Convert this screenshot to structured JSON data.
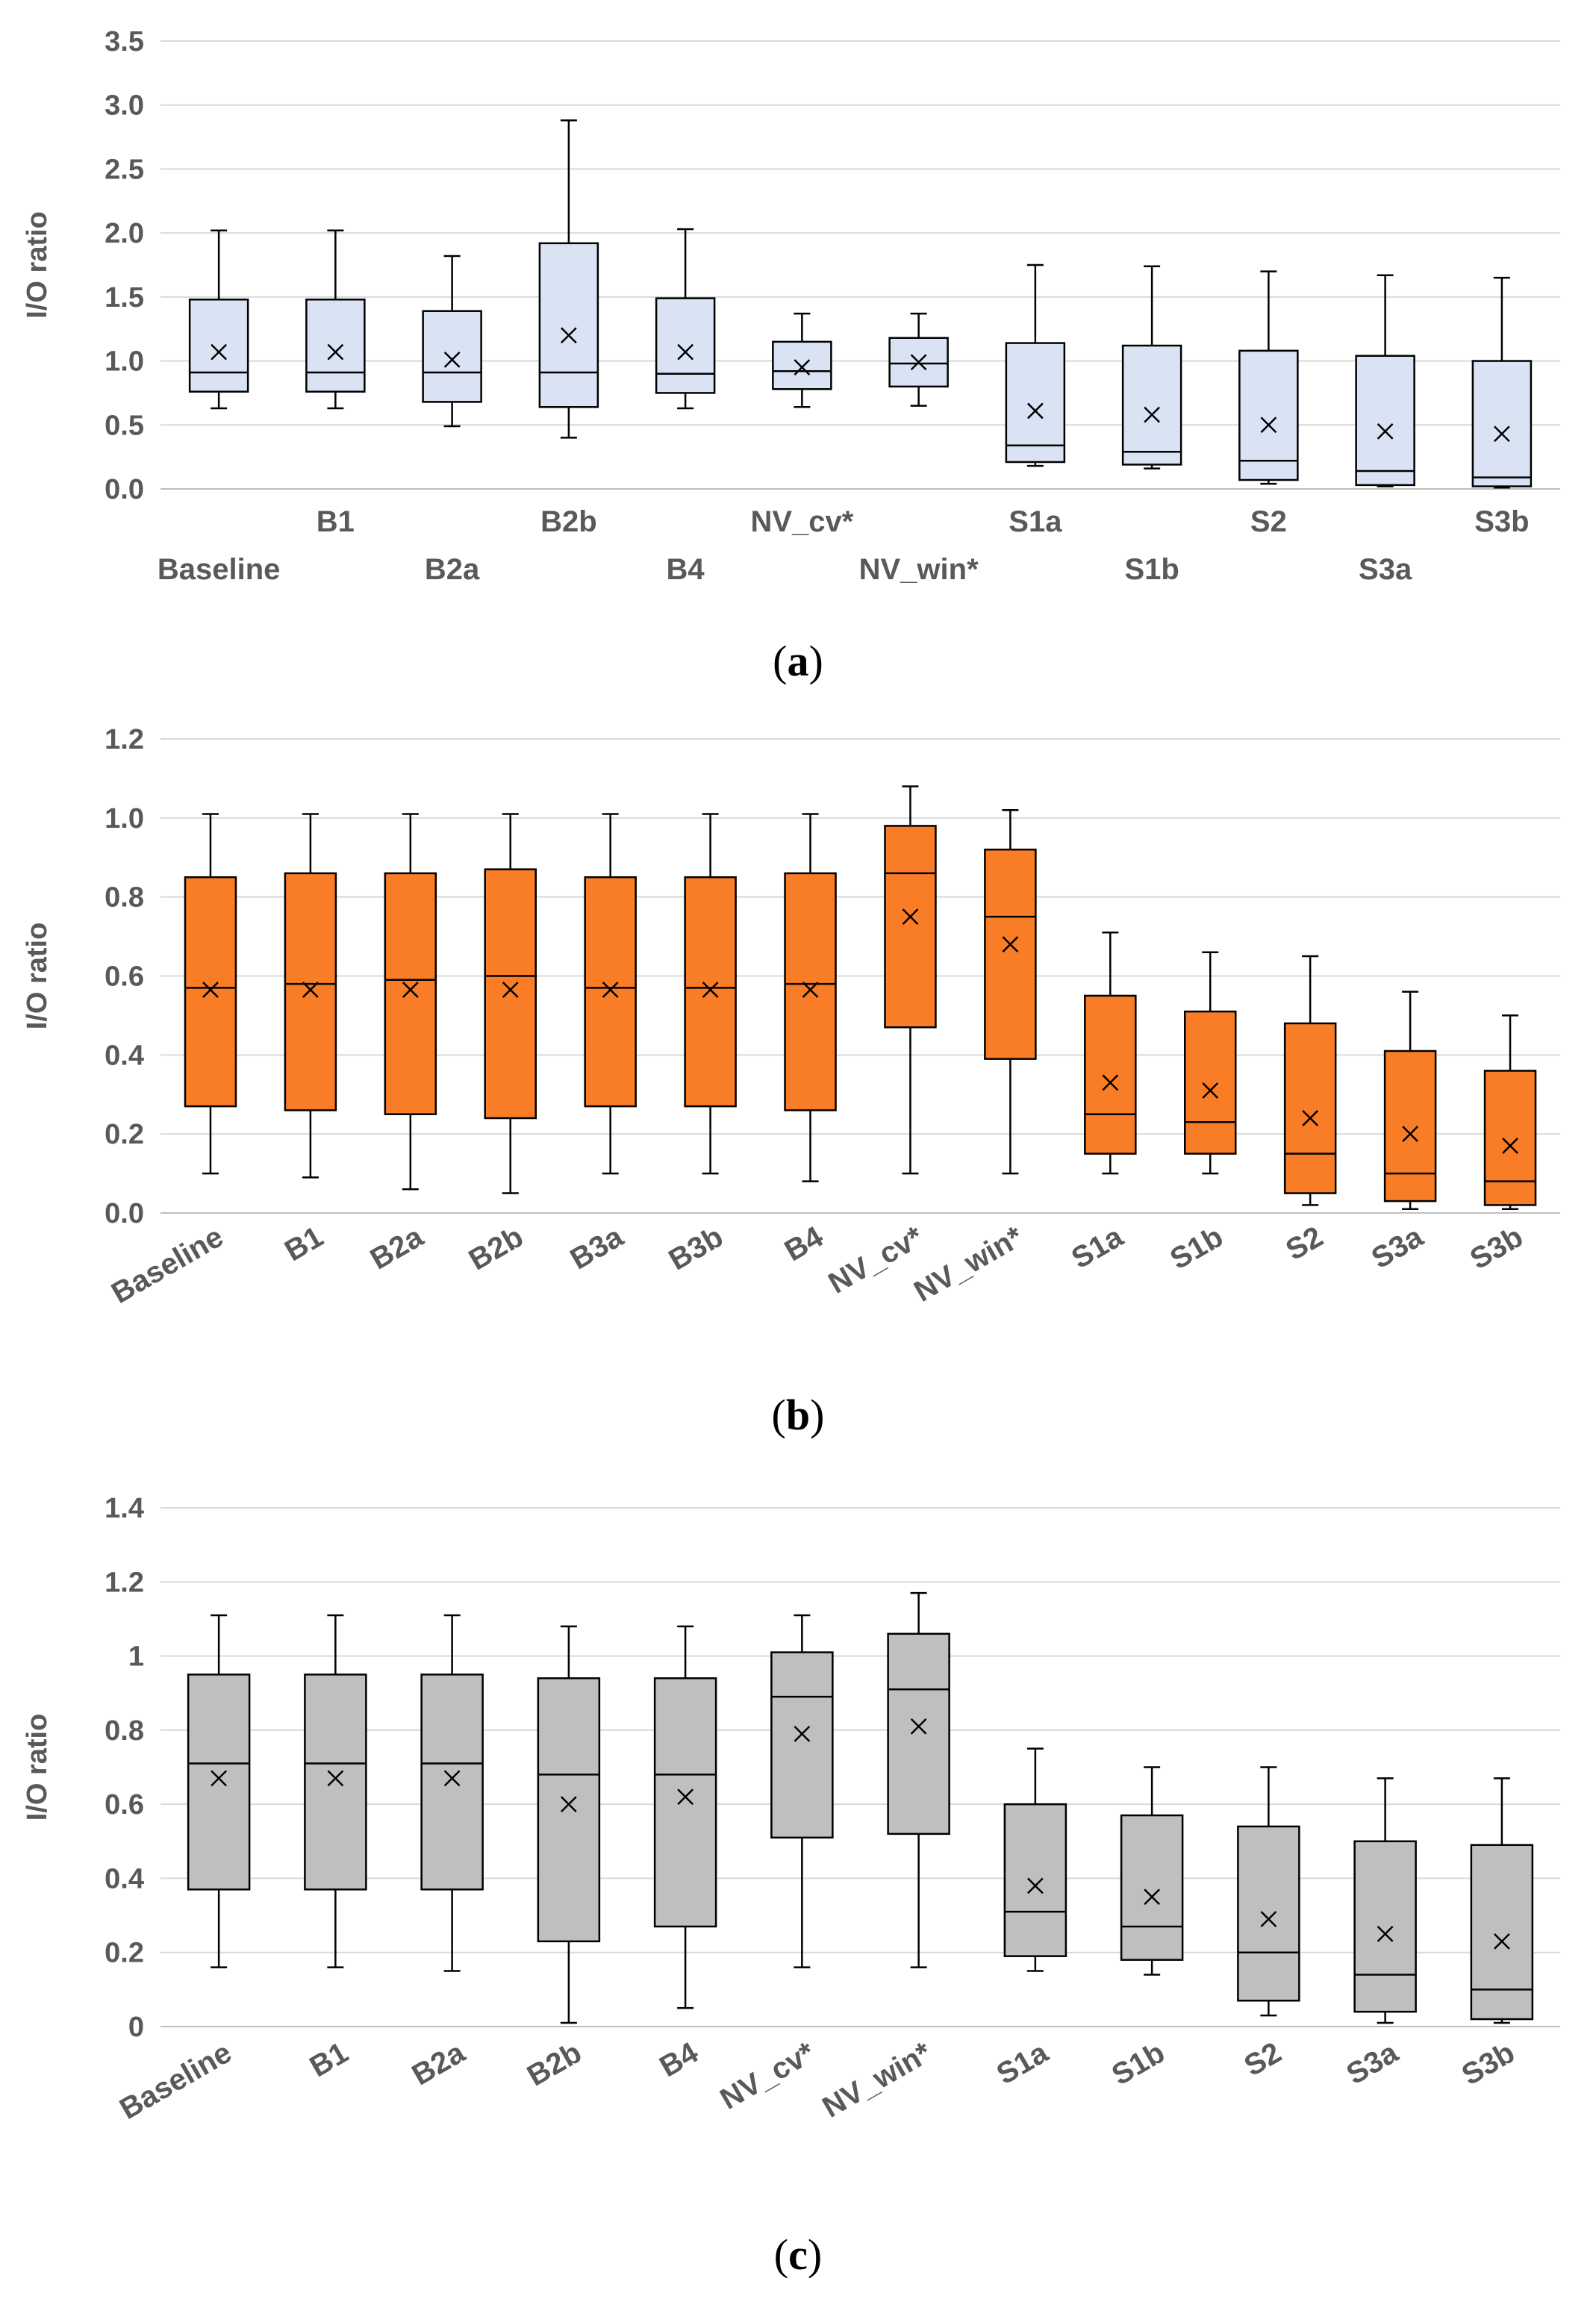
{
  "chart_data": [
    {
      "id": "a",
      "type": "boxplot",
      "panel_label": "a",
      "ylabel": "I/O ratio",
      "ylim": [
        0,
        3.5
      ],
      "yticks": [
        "0.0",
        "0.5",
        "1.0",
        "1.5",
        "2.0",
        "2.5",
        "3.0",
        "3.5"
      ],
      "ytick_values": [
        0,
        0.5,
        1.0,
        1.5,
        2.0,
        2.5,
        3.0,
        3.5
      ],
      "grid": true,
      "label_style": "staggered",
      "colors": {
        "box": "#dae3f3",
        "edge": "#000000"
      },
      "categories": [
        "Baseline",
        "B1",
        "B2a",
        "B2b",
        "B4",
        "NV_cv*",
        "NV_win*",
        "S1a",
        "S1b",
        "S2",
        "S3a",
        "S3b"
      ],
      "boxes": [
        {
          "min": 0.63,
          "q1": 0.76,
          "median": 0.91,
          "q3": 1.48,
          "max": 2.02,
          "mean": 1.07
        },
        {
          "min": 0.63,
          "q1": 0.76,
          "median": 0.91,
          "q3": 1.48,
          "max": 2.02,
          "mean": 1.07
        },
        {
          "min": 0.49,
          "q1": 0.68,
          "median": 0.91,
          "q3": 1.39,
          "max": 1.82,
          "mean": 1.01
        },
        {
          "min": 0.4,
          "q1": 0.64,
          "median": 0.91,
          "q3": 1.92,
          "max": 2.88,
          "mean": 1.2
        },
        {
          "min": 0.63,
          "q1": 0.75,
          "median": 0.9,
          "q3": 1.49,
          "max": 2.03,
          "mean": 1.07
        },
        {
          "min": 0.64,
          "q1": 0.78,
          "median": 0.92,
          "q3": 1.15,
          "max": 1.37,
          "mean": 0.95
        },
        {
          "min": 0.65,
          "q1": 0.8,
          "median": 0.98,
          "q3": 1.18,
          "max": 1.37,
          "mean": 0.99
        },
        {
          "min": 0.18,
          "q1": 0.21,
          "median": 0.34,
          "q3": 1.14,
          "max": 1.75,
          "mean": 0.61
        },
        {
          "min": 0.16,
          "q1": 0.19,
          "median": 0.29,
          "q3": 1.12,
          "max": 1.74,
          "mean": 0.58
        },
        {
          "min": 0.04,
          "q1": 0.07,
          "median": 0.22,
          "q3": 1.08,
          "max": 1.7,
          "mean": 0.5
        },
        {
          "min": 0.02,
          "q1": 0.03,
          "median": 0.14,
          "q3": 1.04,
          "max": 1.67,
          "mean": 0.45
        },
        {
          "min": 0.01,
          "q1": 0.02,
          "median": 0.09,
          "q3": 1.0,
          "max": 1.65,
          "mean": 0.43
        }
      ]
    },
    {
      "id": "b",
      "type": "boxplot",
      "panel_label": "b",
      "ylabel": "I/O ratio",
      "ylim": [
        0,
        1.2
      ],
      "yticks": [
        "0.0",
        "0.2",
        "0.4",
        "0.6",
        "0.8",
        "1.0",
        "1.2"
      ],
      "ytick_values": [
        0,
        0.2,
        0.4,
        0.6,
        0.8,
        1.0,
        1.2
      ],
      "grid": true,
      "label_style": "rotated",
      "colors": {
        "box": "#f97c27",
        "edge": "#000000"
      },
      "categories": [
        "Baseline",
        "B1",
        "B2a",
        "B2b",
        "B3a",
        "B3b",
        "B4",
        "NV_cv*",
        "NV_win*",
        "S1a",
        "S1b",
        "S2",
        "S3a",
        "S3b"
      ],
      "boxes": [
        {
          "min": 0.1,
          "q1": 0.27,
          "median": 0.57,
          "q3": 0.85,
          "max": 1.01,
          "mean": 0.565
        },
        {
          "min": 0.09,
          "q1": 0.26,
          "median": 0.58,
          "q3": 0.86,
          "max": 1.01,
          "mean": 0.565
        },
        {
          "min": 0.06,
          "q1": 0.25,
          "median": 0.59,
          "q3": 0.86,
          "max": 1.01,
          "mean": 0.565
        },
        {
          "min": 0.05,
          "q1": 0.24,
          "median": 0.6,
          "q3": 0.87,
          "max": 1.01,
          "mean": 0.565
        },
        {
          "min": 0.1,
          "q1": 0.27,
          "median": 0.57,
          "q3": 0.85,
          "max": 1.01,
          "mean": 0.565
        },
        {
          "min": 0.1,
          "q1": 0.27,
          "median": 0.57,
          "q3": 0.85,
          "max": 1.01,
          "mean": 0.565
        },
        {
          "min": 0.08,
          "q1": 0.26,
          "median": 0.58,
          "q3": 0.86,
          "max": 1.01,
          "mean": 0.565
        },
        {
          "min": 0.1,
          "q1": 0.47,
          "median": 0.86,
          "q3": 0.98,
          "max": 1.08,
          "mean": 0.75
        },
        {
          "min": 0.1,
          "q1": 0.39,
          "median": 0.75,
          "q3": 0.92,
          "max": 1.02,
          "mean": 0.68
        },
        {
          "min": 0.1,
          "q1": 0.15,
          "median": 0.25,
          "q3": 0.55,
          "max": 0.71,
          "mean": 0.33
        },
        {
          "min": 0.1,
          "q1": 0.15,
          "median": 0.23,
          "q3": 0.51,
          "max": 0.66,
          "mean": 0.31
        },
        {
          "min": 0.02,
          "q1": 0.05,
          "median": 0.15,
          "q3": 0.48,
          "max": 0.65,
          "mean": 0.24
        },
        {
          "min": 0.01,
          "q1": 0.03,
          "median": 0.1,
          "q3": 0.41,
          "max": 0.56,
          "mean": 0.2
        },
        {
          "min": 0.01,
          "q1": 0.02,
          "median": 0.08,
          "q3": 0.36,
          "max": 0.5,
          "mean": 0.17
        }
      ]
    },
    {
      "id": "c",
      "type": "boxplot",
      "panel_label": "c",
      "ylabel": "I/O ratio",
      "ylim": [
        0,
        1.4
      ],
      "yticks": [
        "0",
        "0.2",
        "0.4",
        "0.6",
        "0.8",
        "1",
        "1.2",
        "1.4"
      ],
      "ytick_values": [
        0,
        0.2,
        0.4,
        0.6,
        0.8,
        1.0,
        1.2,
        1.4
      ],
      "grid": true,
      "label_style": "rotated",
      "colors": {
        "box": "#bfbfbf",
        "edge": "#000000"
      },
      "categories": [
        "Baseline",
        "B1",
        "B2a",
        "B2b",
        "B4",
        "NV_cv*",
        "NV_win*",
        "S1a",
        "S1b",
        "S2",
        "S3a",
        "S3b"
      ],
      "boxes": [
        {
          "min": 0.16,
          "q1": 0.37,
          "median": 0.71,
          "q3": 0.95,
          "max": 1.11,
          "mean": 0.67
        },
        {
          "min": 0.16,
          "q1": 0.37,
          "median": 0.71,
          "q3": 0.95,
          "max": 1.11,
          "mean": 0.67
        },
        {
          "min": 0.15,
          "q1": 0.37,
          "median": 0.71,
          "q3": 0.95,
          "max": 1.11,
          "mean": 0.67
        },
        {
          "min": 0.01,
          "q1": 0.23,
          "median": 0.68,
          "q3": 0.94,
          "max": 1.08,
          "mean": 0.6
        },
        {
          "min": 0.05,
          "q1": 0.27,
          "median": 0.68,
          "q3": 0.94,
          "max": 1.08,
          "mean": 0.62
        },
        {
          "min": 0.16,
          "q1": 0.51,
          "median": 0.89,
          "q3": 1.01,
          "max": 1.11,
          "mean": 0.79
        },
        {
          "min": 0.16,
          "q1": 0.52,
          "median": 0.91,
          "q3": 1.06,
          "max": 1.17,
          "mean": 0.81
        },
        {
          "min": 0.15,
          "q1": 0.19,
          "median": 0.31,
          "q3": 0.6,
          "max": 0.75,
          "mean": 0.38
        },
        {
          "min": 0.14,
          "q1": 0.18,
          "median": 0.27,
          "q3": 0.57,
          "max": 0.7,
          "mean": 0.35
        },
        {
          "min": 0.03,
          "q1": 0.07,
          "median": 0.2,
          "q3": 0.54,
          "max": 0.7,
          "mean": 0.29
        },
        {
          "min": 0.01,
          "q1": 0.04,
          "median": 0.14,
          "q3": 0.5,
          "max": 0.67,
          "mean": 0.25
        },
        {
          "min": 0.01,
          "q1": 0.02,
          "median": 0.1,
          "q3": 0.49,
          "max": 0.67,
          "mean": 0.23
        }
      ]
    }
  ]
}
